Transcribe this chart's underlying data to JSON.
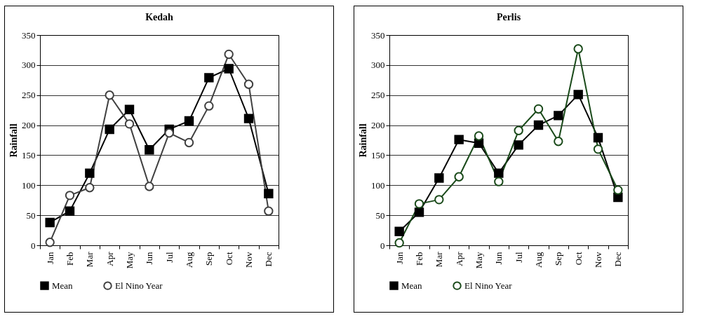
{
  "chart_data": [
    {
      "type": "line",
      "title": "Kedah",
      "ylabel": "Rainfall",
      "categories": [
        "Jan",
        "Feb",
        "Mar",
        "Apr",
        "May",
        "Jun",
        "Jul",
        "Aug",
        "Sep",
        "Oct",
        "Nov",
        "Dec"
      ],
      "ylim": [
        0,
        350
      ],
      "yticks": [
        0,
        50,
        100,
        150,
        200,
        250,
        300,
        350
      ],
      "grid": "y",
      "legend": "bottom",
      "series": [
        {
          "name": "Mean",
          "color": "#000000",
          "marker": "square",
          "values": [
            38,
            57,
            120,
            193,
            226,
            159,
            193,
            207,
            279,
            294,
            211,
            86
          ]
        },
        {
          "name": "El Nino Year",
          "color": "#404040",
          "marker": "circle",
          "values": [
            5,
            83,
            96,
            250,
            202,
            98,
            187,
            171,
            232,
            318,
            268,
            57
          ]
        }
      ]
    },
    {
      "type": "line",
      "title": "Perlis",
      "ylabel": "Rainfall",
      "categories": [
        "Jan",
        "Feb",
        "Mar",
        "Apr",
        "May",
        "Jun",
        "Jul",
        "Aug",
        "Sep",
        "Oct",
        "Nov",
        "Dec"
      ],
      "ylim": [
        0,
        350
      ],
      "yticks": [
        0,
        50,
        100,
        150,
        200,
        250,
        300,
        350
      ],
      "grid": "y",
      "legend": "bottom",
      "series": [
        {
          "name": "Mean",
          "color": "#000000",
          "marker": "square",
          "values": [
            23,
            55,
            112,
            176,
            170,
            120,
            167,
            200,
            216,
            251,
            179,
            80
          ]
        },
        {
          "name": "El Nino Year",
          "color": "#1a4a1a",
          "marker": "circle",
          "values": [
            4,
            69,
            76,
            114,
            182,
            106,
            191,
            227,
            173,
            327,
            160,
            92
          ]
        }
      ]
    }
  ]
}
